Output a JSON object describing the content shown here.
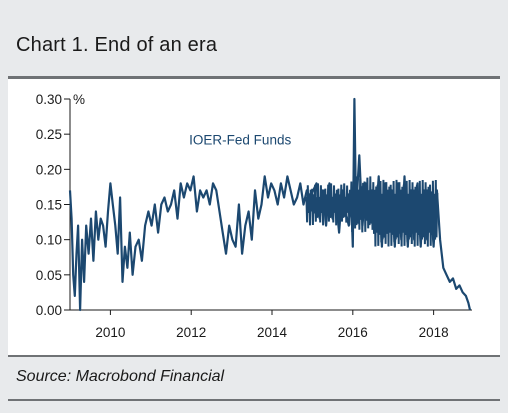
{
  "title": "Chart 1. End of an era",
  "source": "Source: Macrobond Financial",
  "chart_data": {
    "type": "line",
    "title": "Chart 1. End of an era",
    "unit": "%",
    "annotation": "IOER-Fed Funds",
    "xlim": [
      2009.0,
      2018.95
    ],
    "ylim": [
      0,
      0.3
    ],
    "xticks": [
      2010,
      2012,
      2014,
      2016,
      2018
    ],
    "yticks": [
      0.0,
      0.05,
      0.1,
      0.15,
      0.2,
      0.25,
      0.3
    ],
    "ytick_labels": [
      "0.00",
      "0.05",
      "0.10",
      "0.15",
      "0.20",
      "0.25",
      "0.30"
    ],
    "grid": false,
    "line_color": "#1c4870",
    "series": [
      {
        "x": [
          2009.0,
          2009.04,
          2009.08,
          2009.12,
          2009.16,
          2009.2,
          2009.25,
          2009.3,
          2009.35,
          2009.4,
          2009.46,
          2009.52,
          2009.58,
          2009.64,
          2009.7,
          2009.76,
          2009.82,
          2009.88,
          2009.94,
          2010.0,
          2010.06,
          2010.12,
          2010.18,
          2010.24,
          2010.3,
          2010.36,
          2010.42,
          2010.48,
          2010.55,
          2010.62,
          2010.7,
          2010.78,
          2010.86,
          2010.94,
          2011.02,
          2011.1,
          2011.18,
          2011.26,
          2011.34,
          2011.42,
          2011.5,
          2011.58,
          2011.66,
          2011.74,
          2011.82,
          2011.9,
          2011.98,
          2012.06,
          2012.14,
          2012.22,
          2012.3,
          2012.38,
          2012.46,
          2012.54,
          2012.62,
          2012.7,
          2012.78,
          2012.86,
          2012.94,
          2013.02,
          2013.1,
          2013.18,
          2013.26,
          2013.34,
          2013.42,
          2013.5,
          2013.58,
          2013.66,
          2013.74,
          2013.82,
          2013.9,
          2013.98,
          2014.06,
          2014.14,
          2014.22,
          2014.3,
          2014.38,
          2014.46,
          2014.54,
          2014.62,
          2014.7,
          2014.78,
          2014.86,
          2014.94,
          2015.02,
          2015.1,
          2015.18,
          2015.26,
          2015.34,
          2015.42,
          2015.5,
          2015.58,
          2015.66,
          2015.74,
          2015.82,
          2015.9,
          2015.96,
          2016.0,
          2016.04,
          2016.08,
          2016.16,
          2016.24,
          2016.32,
          2016.4,
          2016.48,
          2016.56,
          2016.64,
          2016.72,
          2016.8,
          2016.88,
          2016.96,
          2017.04,
          2017.12,
          2017.2,
          2017.28,
          2017.36,
          2017.44,
          2017.52,
          2017.6,
          2017.68,
          2017.76,
          2017.84,
          2017.92,
          2018.0,
          2018.08,
          2018.16,
          2018.24,
          2018.32,
          2018.4,
          2018.48,
          2018.56,
          2018.64,
          2018.72,
          2018.8,
          2018.86,
          2018.9
        ],
        "y": [
          0.17,
          0.13,
          0.05,
          0.02,
          0.08,
          0.12,
          0.0,
          0.1,
          0.04,
          0.12,
          0.08,
          0.13,
          0.07,
          0.14,
          0.1,
          0.13,
          0.12,
          0.09,
          0.14,
          0.18,
          0.15,
          0.12,
          0.08,
          0.16,
          0.04,
          0.09,
          0.06,
          0.11,
          0.05,
          0.09,
          0.1,
          0.07,
          0.12,
          0.14,
          0.12,
          0.15,
          0.11,
          0.15,
          0.16,
          0.14,
          0.15,
          0.17,
          0.13,
          0.18,
          0.16,
          0.18,
          0.17,
          0.19,
          0.14,
          0.17,
          0.16,
          0.17,
          0.15,
          0.18,
          0.17,
          0.14,
          0.11,
          0.08,
          0.12,
          0.1,
          0.09,
          0.15,
          0.08,
          0.12,
          0.14,
          0.1,
          0.17,
          0.13,
          0.15,
          0.19,
          0.16,
          0.18,
          0.17,
          0.15,
          0.18,
          0.16,
          0.19,
          0.17,
          0.15,
          0.16,
          0.18,
          0.15,
          0.17,
          0.16,
          0.17,
          0.18,
          0.13,
          0.17,
          0.12,
          0.18,
          0.13,
          0.16,
          0.11,
          0.17,
          0.14,
          0.12,
          0.16,
          0.09,
          0.3,
          0.14,
          0.22,
          0.12,
          0.18,
          0.13,
          0.17,
          0.12,
          0.19,
          0.09,
          0.18,
          0.12,
          0.17,
          0.09,
          0.18,
          0.1,
          0.19,
          0.09,
          0.17,
          0.1,
          0.18,
          0.09,
          0.17,
          0.1,
          0.16,
          0.09,
          0.17,
          0.1,
          0.06,
          0.05,
          0.04,
          0.045,
          0.03,
          0.035,
          0.025,
          0.02,
          0.01,
          0.0
        ]
      }
    ]
  }
}
